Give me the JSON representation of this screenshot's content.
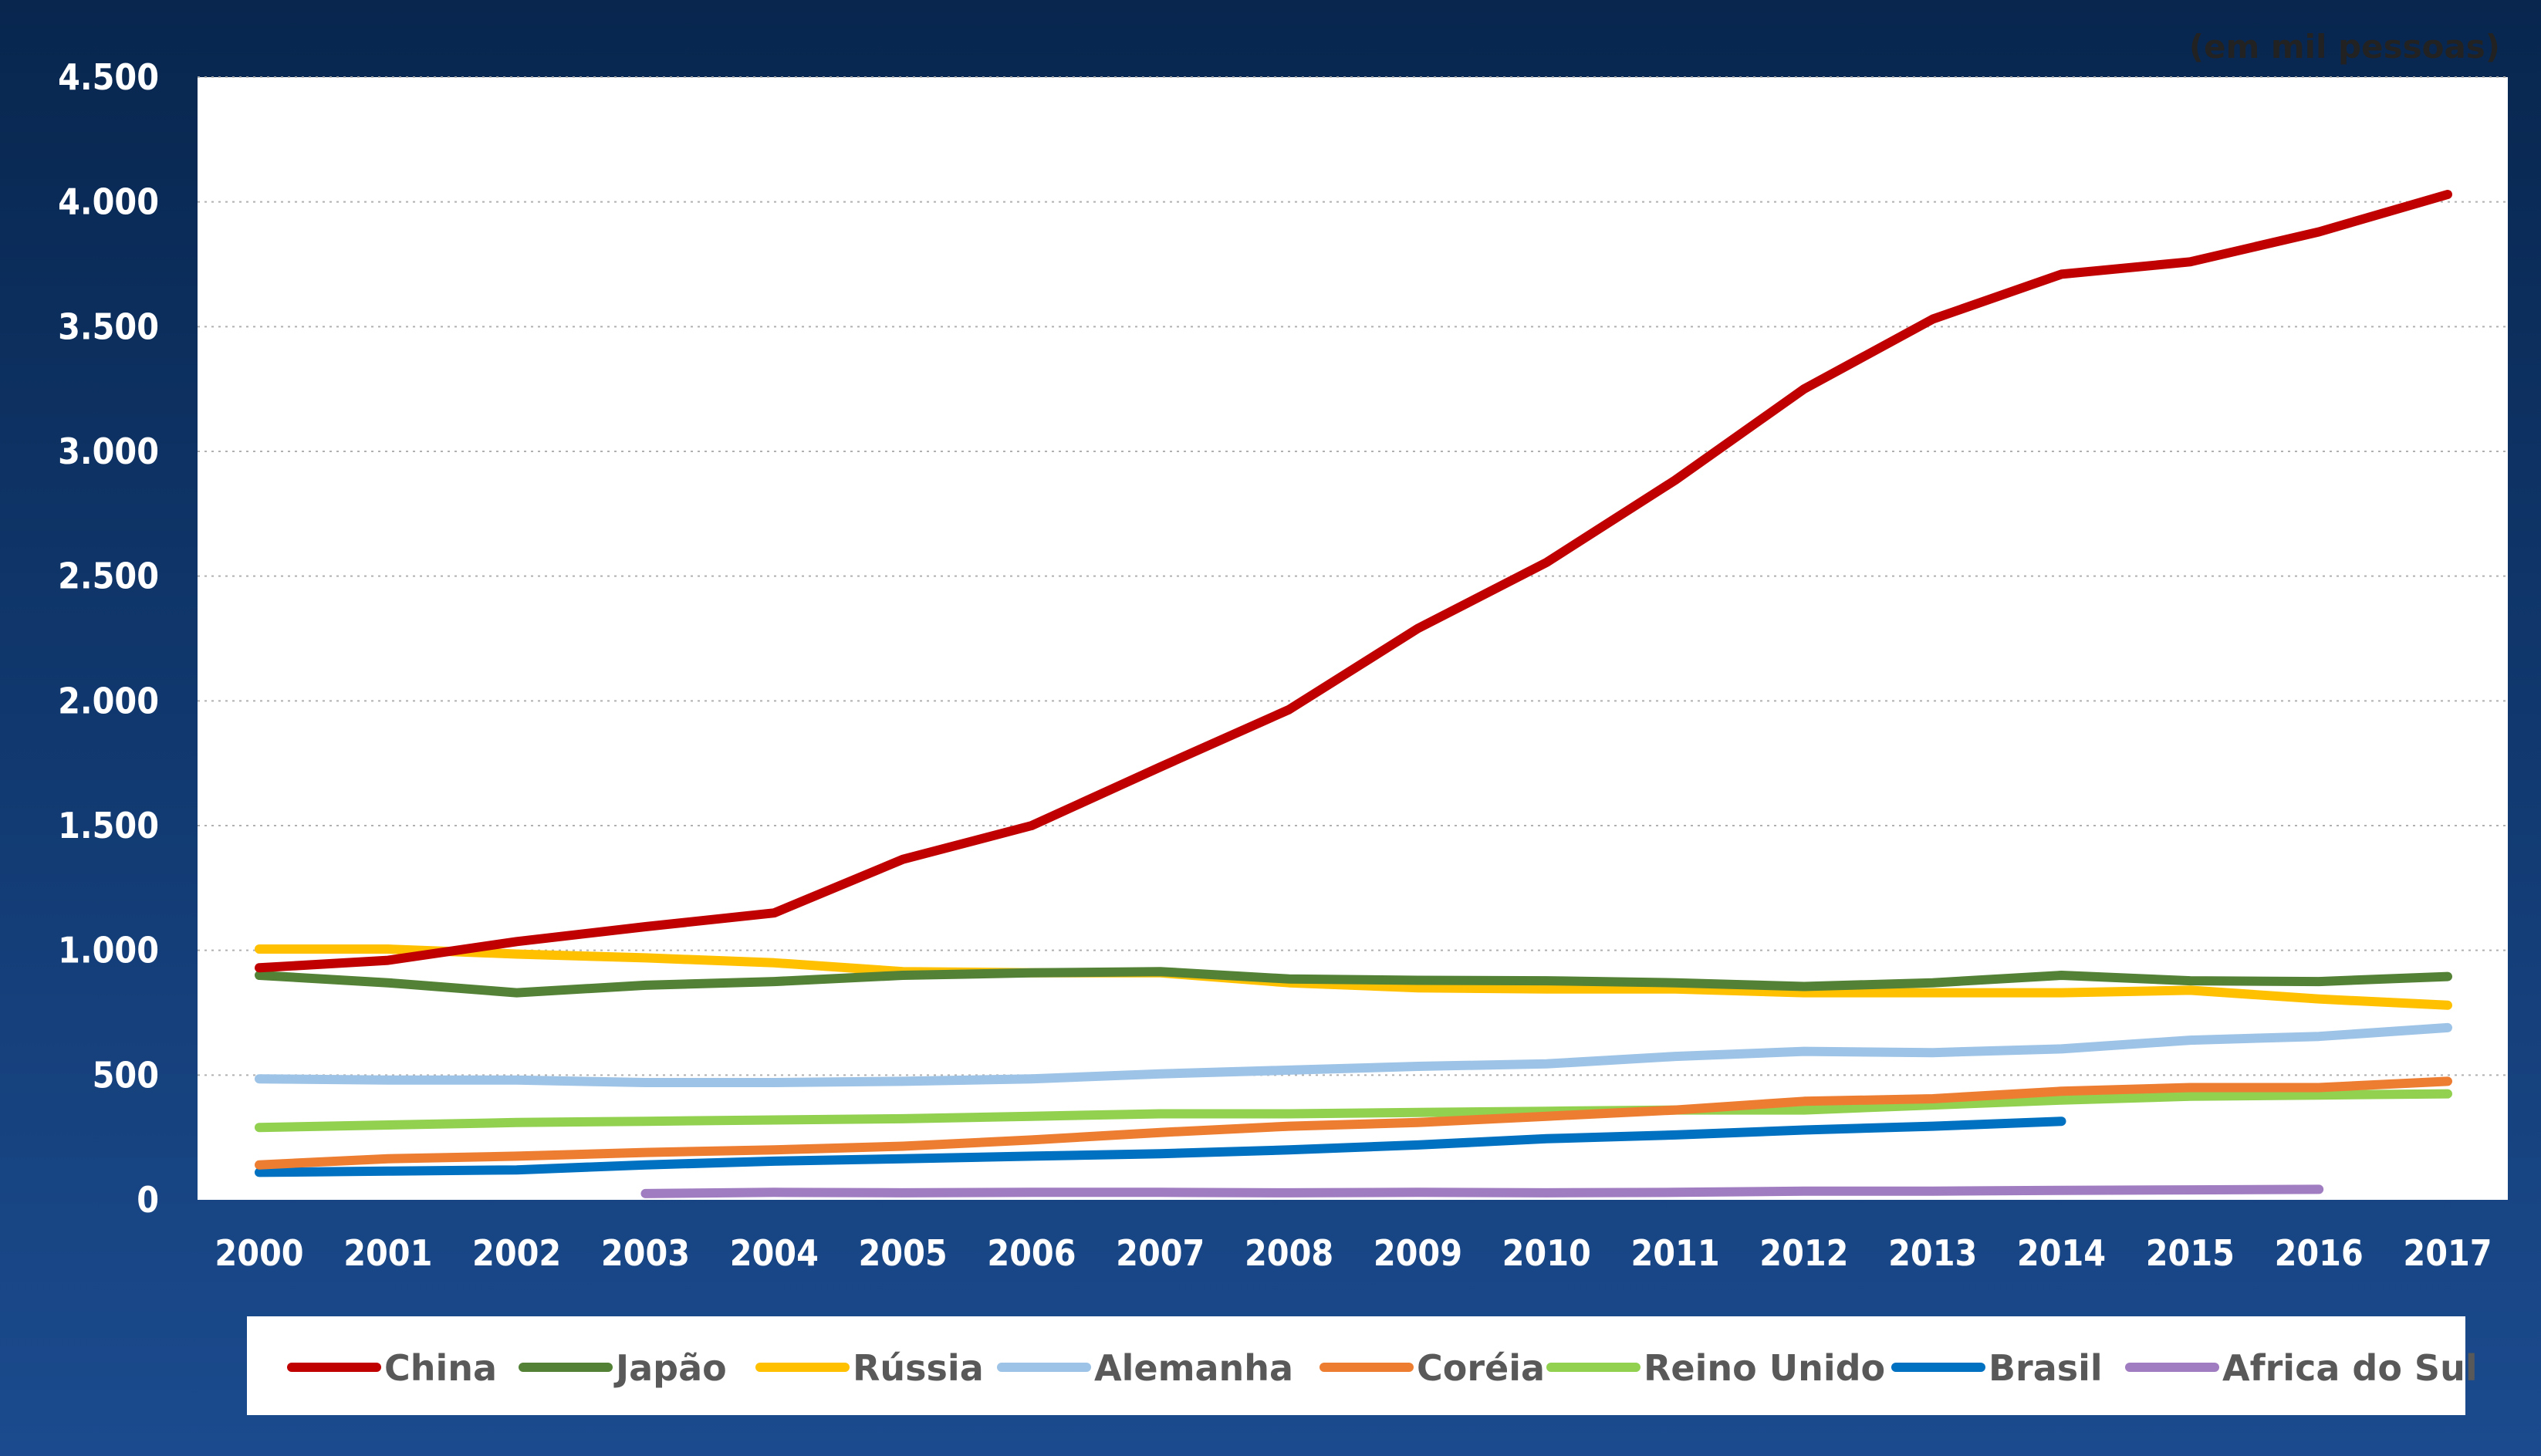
{
  "chart_data": {
    "type": "line",
    "unit_note": "(em mil pessoas)",
    "x": [
      "2000",
      "2001",
      "2002",
      "2003",
      "2004",
      "2005",
      "2006",
      "2007",
      "2008",
      "2009",
      "2010",
      "2011",
      "2012",
      "2013",
      "2014",
      "2015",
      "2016",
      "2017"
    ],
    "ylim": [
      0,
      4500
    ],
    "yticks": [
      0,
      500,
      1000,
      1500,
      2000,
      2500,
      3000,
      3500,
      4000,
      4500
    ],
    "ytick_labels": [
      "0",
      "500",
      "1.000",
      "1.500",
      "2.000",
      "2.500",
      "3.000",
      "3.500",
      "4.000",
      "4.500"
    ],
    "grid": "horizontal-dotted",
    "legend_position": "bottom",
    "series": [
      {
        "name": "China",
        "color": "#c00000",
        "values": [
          930,
          960,
          1035,
          1095,
          1150,
          1365,
          1500,
          1735,
          1965,
          2290,
          2555,
          2885,
          3250,
          3530,
          3710,
          3760,
          3880,
          4030
        ]
      },
      {
        "name": "Japão",
        "color": "#538135",
        "values": [
          900,
          870,
          830,
          860,
          875,
          900,
          910,
          915,
          885,
          880,
          878,
          870,
          855,
          870,
          900,
          878,
          875,
          895
        ]
      },
      {
        "name": "Rússia",
        "color": "#ffc000",
        "values": [
          1005,
          1005,
          985,
          970,
          950,
          915,
          910,
          910,
          870,
          850,
          845,
          845,
          830,
          830,
          830,
          840,
          805,
          780
        ]
      },
      {
        "name": "Alemanha",
        "color": "#9dc3e6",
        "values": [
          485,
          480,
          480,
          470,
          470,
          475,
          485,
          505,
          520,
          535,
          545,
          575,
          595,
          590,
          605,
          640,
          655,
          690
        ]
      },
      {
        "name": "Coréia",
        "color": "#ed7d31",
        "values": [
          140,
          165,
          175,
          190,
          200,
          215,
          240,
          270,
          295,
          310,
          335,
          360,
          395,
          405,
          435,
          450,
          450,
          475
        ]
      },
      {
        "name": "Reino Unido",
        "color": "#92d050",
        "values": [
          290,
          300,
          310,
          315,
          320,
          325,
          335,
          345,
          345,
          350,
          355,
          360,
          360,
          380,
          400,
          415,
          420,
          425
        ]
      },
      {
        "name": "Brasil",
        "color": "#0070c0",
        "values": [
          110,
          115,
          120,
          140,
          155,
          165,
          175,
          185,
          200,
          220,
          245,
          260,
          280,
          295,
          315,
          null,
          null,
          null
        ]
      },
      {
        "name": "Africa do Sul",
        "color": "#a07cc0",
        "values": [
          null,
          null,
          null,
          25,
          30,
          28,
          30,
          30,
          28,
          30,
          28,
          30,
          35,
          35,
          38,
          40,
          42,
          null
        ]
      }
    ]
  }
}
